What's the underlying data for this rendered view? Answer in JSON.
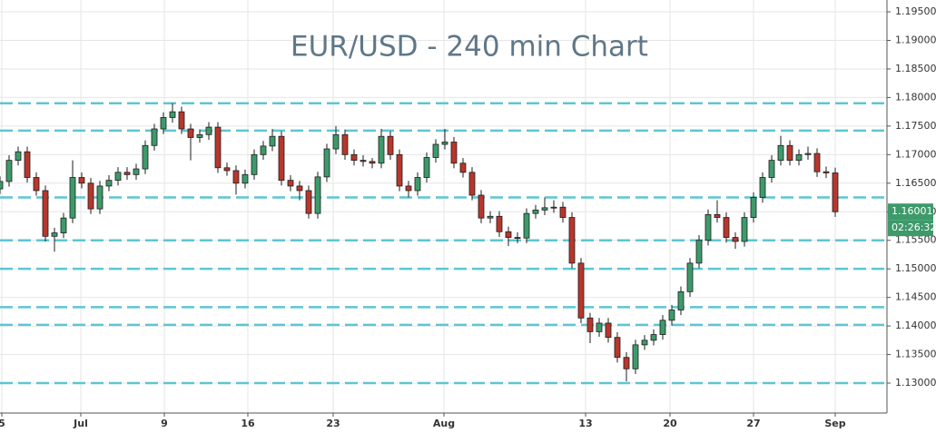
{
  "chart_data": {
    "type": "candlestick",
    "title": "EUR/USD - 240 min Chart",
    "up_color": "#3d9a6a",
    "down_color": "#b8362c",
    "edge_color": "#1e1e1e",
    "level_color": "#5cc6d3",
    "grid": true,
    "open": [
      1.164,
      1.1653,
      1.169,
      1.1705,
      1.166,
      1.1637,
      1.1557,
      1.1563,
      1.1589,
      1.166,
      1.165,
      1.1605,
      1.1645,
      1.1655,
      1.1669,
      1.1665,
      1.1675,
      1.1716,
      1.1745,
      1.1765,
      1.1775,
      1.1745,
      1.173,
      1.1735,
      1.1748,
      1.1677,
      1.1672,
      1.165,
      1.1665,
      1.17,
      1.1715,
      1.1732,
      1.1655,
      1.1645,
      1.1637,
      1.1597,
      1.1661,
      1.171,
      1.1735,
      1.17,
      1.169,
      1.1688,
      1.1685,
      1.1732,
      1.17,
      1.1645,
      1.1637,
      1.166,
      1.1695,
      1.1718,
      1.1722,
      1.1685,
      1.1669,
      1.1629,
      1.1589,
      1.1592,
      1.1565,
      1.1555,
      1.1554,
      1.1597,
      1.1603,
      1.1607,
      1.1608,
      1.159,
      1.151,
      1.1414,
      1.139,
      1.1405,
      1.138,
      1.1345,
      1.1325,
      1.1367,
      1.1375,
      1.1385,
      1.141,
      1.1428,
      1.146,
      1.151,
      1.155,
      1.1595,
      1.159,
      1.1555,
      1.1548,
      1.159,
      1.1625,
      1.166,
      1.169,
      1.1716,
      1.169,
      1.17,
      1.1702,
      1.167,
      1.1668
    ],
    "high": [
      1.1662,
      1.1699,
      1.1714,
      1.1714,
      1.1669,
      1.1646,
      1.1572,
      1.1598,
      1.169,
      1.1669,
      1.1659,
      1.1654,
      1.1664,
      1.1678,
      1.1678,
      1.1684,
      1.1725,
      1.1754,
      1.1774,
      1.179,
      1.1784,
      1.1754,
      1.1744,
      1.1757,
      1.1757,
      1.1686,
      1.1681,
      1.1674,
      1.1709,
      1.1724,
      1.1745,
      1.1741,
      1.1664,
      1.1654,
      1.1646,
      1.167,
      1.1719,
      1.175,
      1.1744,
      1.1709,
      1.1699,
      1.1694,
      1.1745,
      1.1741,
      1.1709,
      1.1654,
      1.1669,
      1.1704,
      1.1727,
      1.1745,
      1.1731,
      1.1694,
      1.1678,
      1.1638,
      1.1601,
      1.1601,
      1.1574,
      1.1564,
      1.1606,
      1.1612,
      1.1625,
      1.162,
      1.1617,
      1.1599,
      1.1519,
      1.1423,
      1.1414,
      1.1414,
      1.1389,
      1.1354,
      1.1376,
      1.1384,
      1.1394,
      1.1419,
      1.1437,
      1.1469,
      1.1519,
      1.1559,
      1.1604,
      1.162,
      1.1599,
      1.1564,
      1.1599,
      1.1634,
      1.1669,
      1.1699,
      1.1733,
      1.1725,
      1.1709,
      1.1714,
      1.1711,
      1.1679,
      1.1677
    ],
    "low": [
      1.1631,
      1.1644,
      1.1681,
      1.1651,
      1.1628,
      1.1548,
      1.153,
      1.1554,
      1.158,
      1.1641,
      1.1596,
      1.1596,
      1.1636,
      1.1646,
      1.1656,
      1.1656,
      1.1666,
      1.1707,
      1.1736,
      1.1756,
      1.1736,
      1.169,
      1.1721,
      1.1726,
      1.1668,
      1.1663,
      1.163,
      1.1641,
      1.1656,
      1.1691,
      1.1706,
      1.1646,
      1.1636,
      1.162,
      1.1588,
      1.1588,
      1.1652,
      1.1701,
      1.1691,
      1.1681,
      1.1679,
      1.1676,
      1.1676,
      1.1691,
      1.1636,
      1.1625,
      1.1628,
      1.1651,
      1.1686,
      1.1709,
      1.1676,
      1.166,
      1.162,
      1.158,
      1.158,
      1.1556,
      1.154,
      1.1545,
      1.1545,
      1.1588,
      1.1594,
      1.1598,
      1.1581,
      1.1501,
      1.1405,
      1.137,
      1.1381,
      1.1371,
      1.1336,
      1.1303,
      1.1316,
      1.1358,
      1.1366,
      1.1376,
      1.1401,
      1.1419,
      1.1451,
      1.1501,
      1.1541,
      1.1581,
      1.1546,
      1.1535,
      1.1539,
      1.1581,
      1.1616,
      1.1651,
      1.1681,
      1.1681,
      1.1681,
      1.1691,
      1.1661,
      1.1659,
      1.1591
    ],
    "close": [
      1.1653,
      1.169,
      1.1705,
      1.166,
      1.1637,
      1.1557,
      1.1563,
      1.1589,
      1.166,
      1.165,
      1.1605,
      1.1645,
      1.1655,
      1.1669,
      1.1665,
      1.1675,
      1.1716,
      1.1745,
      1.1765,
      1.1775,
      1.1745,
      1.173,
      1.1735,
      1.1748,
      1.1677,
      1.1672,
      1.165,
      1.1665,
      1.17,
      1.1715,
      1.1732,
      1.1655,
      1.1645,
      1.1637,
      1.1597,
      1.1661,
      1.171,
      1.1735,
      1.17,
      1.169,
      1.1688,
      1.1685,
      1.1732,
      1.17,
      1.1645,
      1.1637,
      1.166,
      1.1695,
      1.1718,
      1.1722,
      1.1685,
      1.1669,
      1.1629,
      1.1589,
      1.1592,
      1.1565,
      1.1555,
      1.1554,
      1.1597,
      1.1603,
      1.1607,
      1.1608,
      1.159,
      1.151,
      1.1414,
      1.139,
      1.1405,
      1.138,
      1.1345,
      1.1325,
      1.1367,
      1.1375,
      1.1385,
      1.141,
      1.1428,
      1.146,
      1.151,
      1.155,
      1.1595,
      1.159,
      1.1555,
      1.1548,
      1.159,
      1.1625,
      1.166,
      1.169,
      1.1716,
      1.169,
      1.17,
      1.1702,
      1.167,
      1.1668,
      1.16
    ],
    "levels": [
      1.179,
      1.1742,
      1.1625,
      1.155,
      1.15,
      1.1433,
      1.1402,
      1.13
    ],
    "last_price": {
      "value": 1.16001,
      "label": "1.16001"
    },
    "countdown": "02:26:32",
    "xlim": [
      0,
      97.7
    ],
    "xticks": [
      {
        "value": 0.2,
        "label": "5"
      },
      {
        "value": 8.9,
        "label": "Jul"
      },
      {
        "value": 18.1,
        "label": "9"
      },
      {
        "value": 27.3,
        "label": "16"
      },
      {
        "value": 36.7,
        "label": "23"
      },
      {
        "value": 48.9,
        "label": "Aug"
      },
      {
        "value": 64.5,
        "label": "13"
      },
      {
        "value": 73.8,
        "label": "20"
      },
      {
        "value": 83,
        "label": "27"
      },
      {
        "value": 92,
        "label": "Sep"
      }
    ],
    "ylim": [
      1.12476,
      1.19707
    ],
    "yticks": [
      {
        "value": 1.13,
        "label": "1.13000"
      },
      {
        "value": 1.135,
        "label": "1.13500"
      },
      {
        "value": 1.14,
        "label": "1.14000"
      },
      {
        "value": 1.145,
        "label": "1.14500"
      },
      {
        "value": 1.15,
        "label": "1.15000"
      },
      {
        "value": 1.155,
        "label": "1.15500"
      },
      {
        "value": 1.16,
        "label": "1.16000"
      },
      {
        "value": 1.165,
        "label": "1.16500"
      },
      {
        "value": 1.17,
        "label": "1.17000"
      },
      {
        "value": 1.175,
        "label": "1.17500"
      },
      {
        "value": 1.18,
        "label": "1.18000"
      },
      {
        "value": 1.185,
        "label": "1.18500"
      },
      {
        "value": 1.19,
        "label": "1.19000"
      },
      {
        "value": 1.195,
        "label": "1.19500"
      }
    ]
  }
}
